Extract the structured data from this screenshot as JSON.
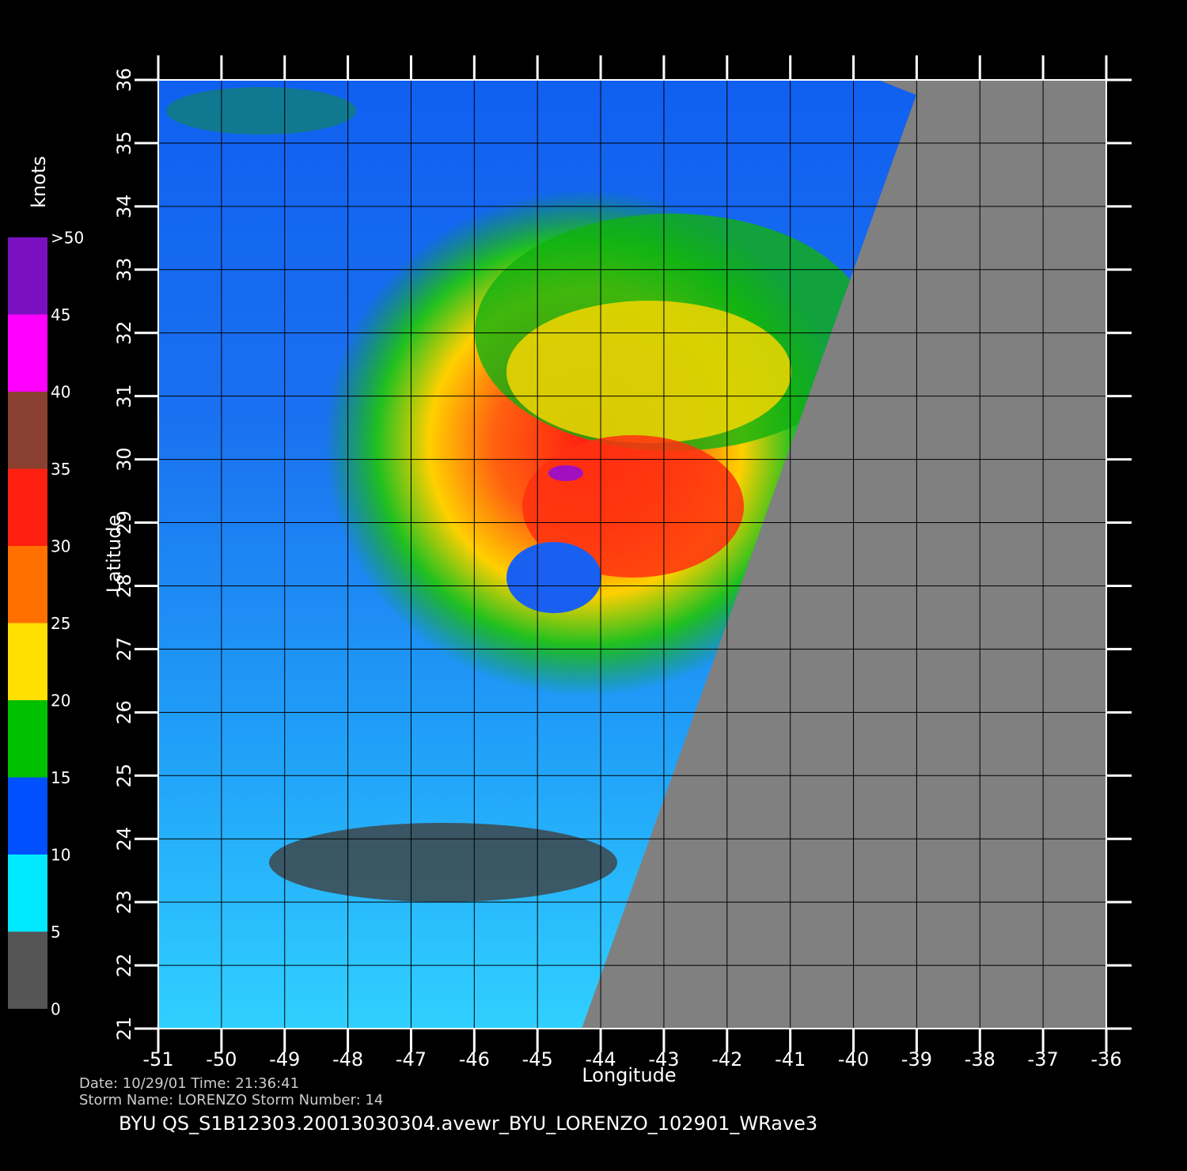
{
  "chart_data": {
    "type": "map",
    "xlabel": "Longitude",
    "ylabel": "Latitude",
    "xlim": [
      -51,
      -36
    ],
    "ylim": [
      21,
      36
    ],
    "xticks": [
      -51,
      -50,
      -49,
      -48,
      -47,
      -46,
      -45,
      -44,
      -43,
      -42,
      -41,
      -40,
      -39,
      -38,
      -37,
      -36
    ],
    "yticks": [
      21,
      22,
      23,
      24,
      25,
      26,
      27,
      28,
      29,
      30,
      31,
      32,
      33,
      34,
      35,
      36
    ],
    "grid": true,
    "colorbar": {
      "title": "knots",
      "ticks": [
        0,
        5,
        10,
        15,
        20,
        25,
        30,
        35,
        40,
        45,
        {
          "value": 50,
          "label": ">50"
        }
      ],
      "colors": [
        "#555555",
        "#00e8ff",
        "#0050ff",
        "#00c000",
        "#ffe000",
        "#ff7000",
        "#ff2010",
        "#8a4030",
        "#ff00ff",
        "#7a10c0"
      ]
    }
  },
  "footer": {
    "date_line": "Date:  10/29/01   Time:  21:36:41",
    "storm_line": "Storm  Name:  LORENZO    Storm  Number:  14",
    "file_line": "BYU  QS_S1B12303.20013030304.avewr_BYU_LORENZO_102901_WRave3"
  }
}
